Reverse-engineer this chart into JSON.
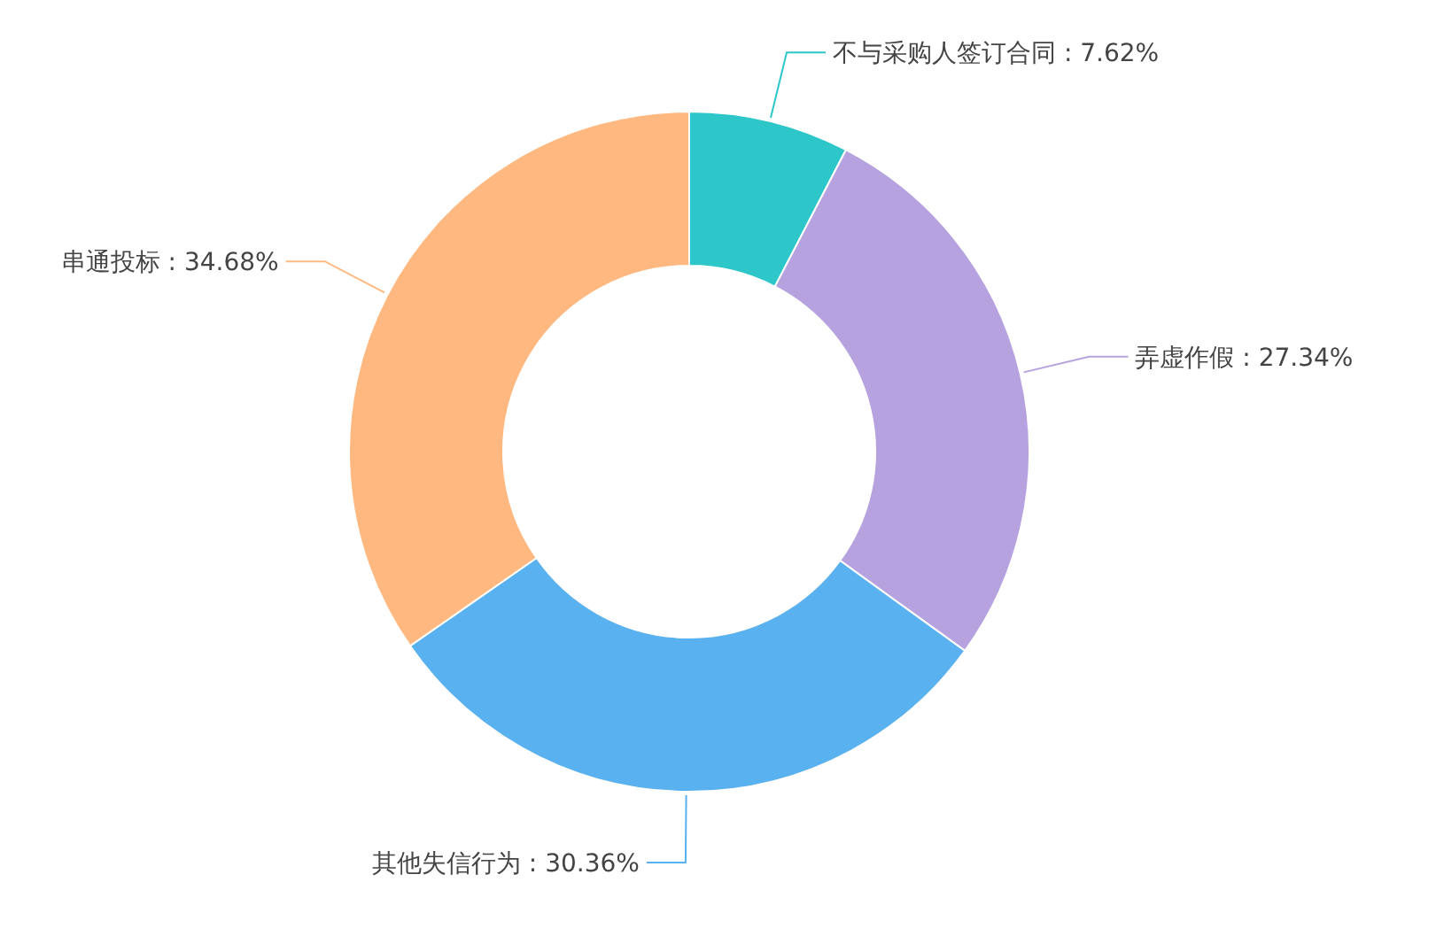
{
  "chart_data": {
    "type": "donut",
    "categories": [
      "不与采购人签订合同",
      "弄虚作假",
      "其他失信行为",
      "串通投标"
    ],
    "values": [
      7.62,
      27.34,
      30.36,
      34.68
    ],
    "colors": [
      "#2ec7c9",
      "#b6a2de",
      "#5ab1ef",
      "#ffb980"
    ],
    "value_labels": [
      "7.62%",
      "27.34%",
      "30.36%",
      "34.68%"
    ]
  }
}
